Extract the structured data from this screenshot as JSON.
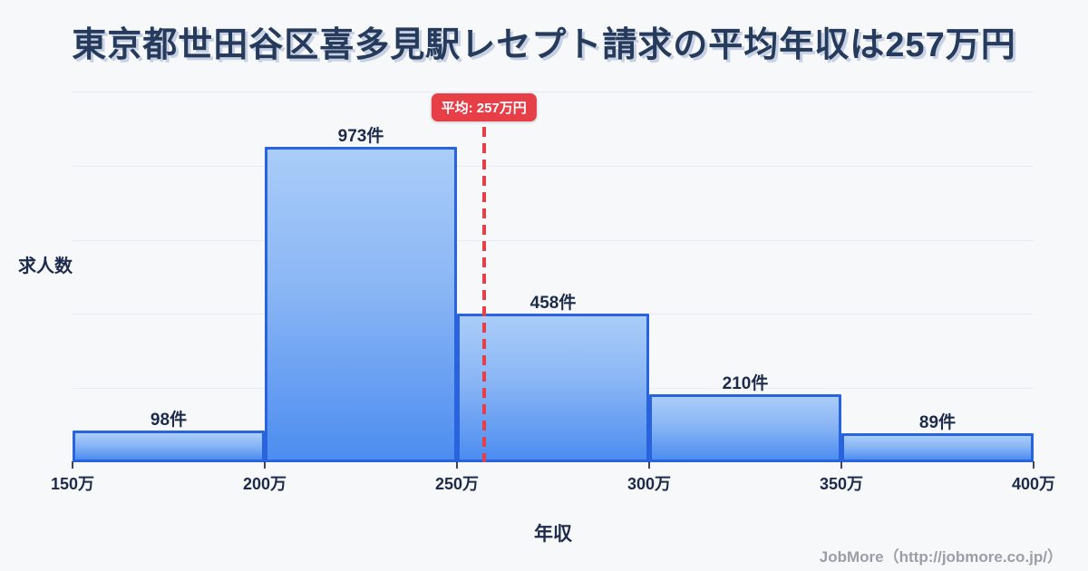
{
  "page": {
    "title": "東京都世田谷区喜多見駅レセプト請求の平均年収は257万円",
    "footer": "JobMore（http://jobmore.co.jp/）"
  },
  "chart_data": {
    "type": "bar",
    "title": "東京都世田谷区喜多見駅レセプト請求の平均年収は257万円",
    "xlabel": "年収",
    "ylabel": "求人数",
    "x_ticks": [
      150,
      200,
      250,
      300,
      350,
      400
    ],
    "x_tick_labels": [
      "150万",
      "200万",
      "250万",
      "300万",
      "350万",
      "400万"
    ],
    "bins": [
      {
        "from": 150,
        "to": 200,
        "count": 98,
        "label": "98件"
      },
      {
        "from": 200,
        "to": 250,
        "count": 973,
        "label": "973件"
      },
      {
        "from": 250,
        "to": 300,
        "count": 458,
        "label": "458件"
      },
      {
        "from": 300,
        "to": 350,
        "count": 210,
        "label": "210件"
      },
      {
        "from": 350,
        "to": 400,
        "count": 89,
        "label": "89件"
      }
    ],
    "mean": {
      "value": 257,
      "label": "平均: 257万円"
    },
    "ylim": [
      0,
      1145
    ],
    "grid": true,
    "legend": false,
    "colors": {
      "bar_border": "#2a63de",
      "bar_fill_top": "#aacdf9",
      "bar_fill_bottom": "#4d8df0",
      "mean_line": "#e73f48",
      "gridline": "#e8ebf1",
      "text": "#1d2b4b",
      "title_text": "#263a5c",
      "footer_text": "#9b9ea6",
      "background": "#f7f8fa"
    }
  }
}
